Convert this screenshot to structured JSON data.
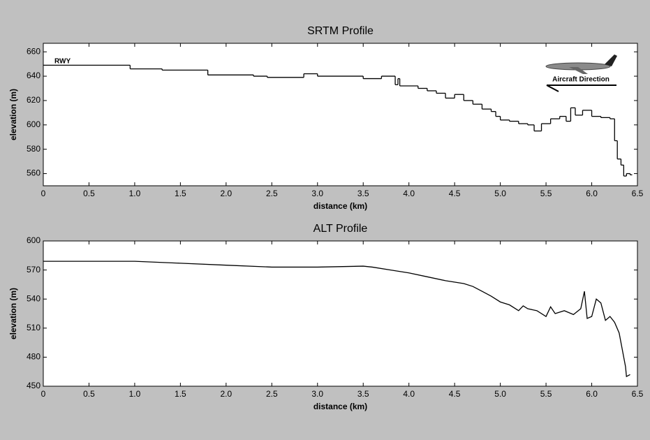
{
  "chart_data": [
    {
      "type": "line",
      "step": true,
      "title": "SRTM Profile",
      "xlabel": "distance (km)",
      "ylabel": "elevation (m)",
      "annotations": [
        "RWY",
        "Aircraft Direction"
      ],
      "color": "#000000",
      "x": [
        0,
        0.95,
        1.3,
        1.8,
        2.3,
        2.45,
        2.85,
        3.0,
        3.5,
        3.7,
        3.85,
        3.88,
        3.9,
        4.1,
        4.2,
        4.3,
        4.4,
        4.5,
        4.6,
        4.7,
        4.8,
        4.9,
        4.95,
        5.0,
        5.1,
        5.2,
        5.3,
        5.37,
        5.45,
        5.55,
        5.65,
        5.72,
        5.77,
        5.82,
        5.9,
        6.0,
        6.1,
        6.2,
        6.25,
        6.28,
        6.32,
        6.35,
        6.38,
        6.42
      ],
      "values": [
        649,
        646,
        645,
        641,
        640,
        639,
        642,
        640,
        638,
        640,
        633,
        638,
        632,
        630,
        628,
        626,
        622,
        625,
        620,
        617,
        613,
        611,
        607,
        604,
        603,
        601,
        600,
        595,
        601,
        605,
        607,
        603,
        614,
        608,
        612,
        607,
        606,
        605,
        587,
        572,
        567,
        558,
        560,
        559
      ],
      "xlim": [
        0,
        6.5
      ],
      "ylim": [
        550,
        667
      ],
      "xticks": [
        0,
        0.5,
        {
          "value": 1,
          "label": "1.0"
        },
        1.5,
        {
          "value": 2,
          "label": "2.0"
        },
        2.5,
        {
          "value": 3,
          "label": "3.0"
        },
        3.5,
        {
          "value": 4,
          "label": "4.0"
        },
        4.5,
        {
          "value": 5,
          "label": "5.0"
        },
        5.5,
        {
          "value": 6,
          "label": "6.0"
        },
        6.5
      ],
      "yticks": [
        560,
        580,
        600,
        620,
        640,
        660
      ]
    },
    {
      "type": "line",
      "step": false,
      "title": "ALT Profile",
      "xlabel": "distance (km)",
      "ylabel": "elevation (m)",
      "color": "#000000",
      "x": [
        0,
        0.5,
        1.0,
        1.5,
        2.0,
        2.5,
        3.0,
        3.5,
        3.6,
        3.8,
        4.0,
        4.2,
        4.4,
        4.6,
        4.7,
        4.8,
        4.9,
        5.0,
        5.1,
        5.2,
        5.25,
        5.3,
        5.4,
        5.5,
        5.55,
        5.6,
        5.7,
        5.8,
        5.88,
        5.92,
        5.95,
        6.0,
        6.05,
        6.1,
        6.15,
        6.2,
        6.25,
        6.3,
        6.33,
        6.37,
        6.38,
        6.42
      ],
      "values": [
        579,
        579,
        579,
        577,
        575,
        573,
        573,
        574,
        573,
        570,
        567,
        563,
        559,
        556,
        553,
        548,
        543,
        537,
        534,
        528,
        533,
        530,
        528,
        522,
        532,
        525,
        528,
        524,
        530,
        548,
        520,
        522,
        540,
        536,
        518,
        522,
        516,
        505,
        490,
        470,
        460,
        462
      ],
      "xlim": [
        0,
        6.5
      ],
      "ylim": [
        450,
        600
      ],
      "xticks": [
        0,
        0.5,
        {
          "value": 1,
          "label": "1.0"
        },
        1.5,
        {
          "value": 2,
          "label": "2.0"
        },
        2.5,
        {
          "value": 3,
          "label": "3.0"
        },
        3.5,
        {
          "value": 4,
          "label": "4.0"
        },
        4.5,
        {
          "value": 5,
          "label": "5.0"
        },
        5.5,
        {
          "value": 6,
          "label": "6.0"
        },
        6.5
      ],
      "yticks": [
        450,
        480,
        510,
        540,
        570,
        600
      ]
    }
  ]
}
